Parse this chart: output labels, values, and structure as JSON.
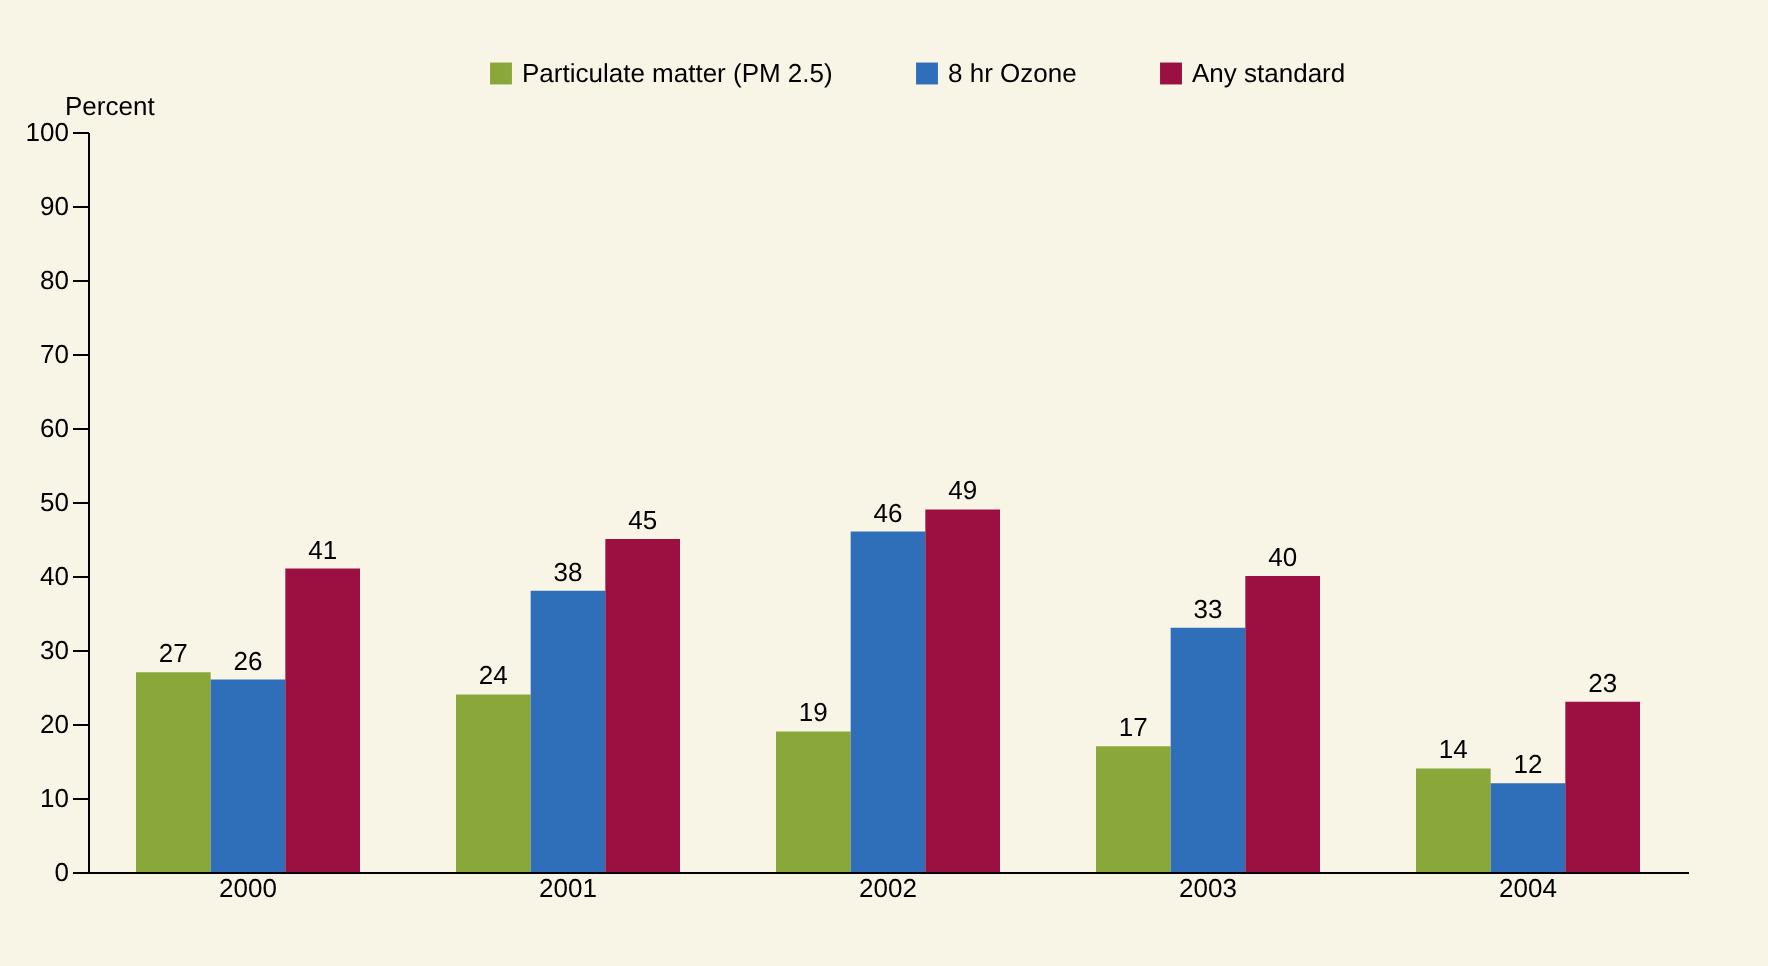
{
  "chart_data": {
    "type": "bar",
    "ylabel": "Percent",
    "categories": [
      "2000",
      "2001",
      "2002",
      "2003",
      "2004"
    ],
    "series": [
      {
        "name": "Particulate matter (PM 2.5)",
        "color": "#8aa83a",
        "values": [
          27,
          24,
          19,
          17,
          14
        ]
      },
      {
        "name": "8 hr Ozone",
        "color": "#2f6fba",
        "values": [
          26,
          38,
          46,
          33,
          12
        ]
      },
      {
        "name": "Any standard",
        "color": "#9b1040",
        "values": [
          41,
          45,
          49,
          40,
          23
        ]
      }
    ],
    "ylim": [
      0,
      100
    ],
    "yticks": [
      0,
      10,
      20,
      30,
      40,
      50,
      60,
      70,
      80,
      90,
      100
    ],
    "grid": false,
    "legend": "top",
    "data_labels": true
  }
}
